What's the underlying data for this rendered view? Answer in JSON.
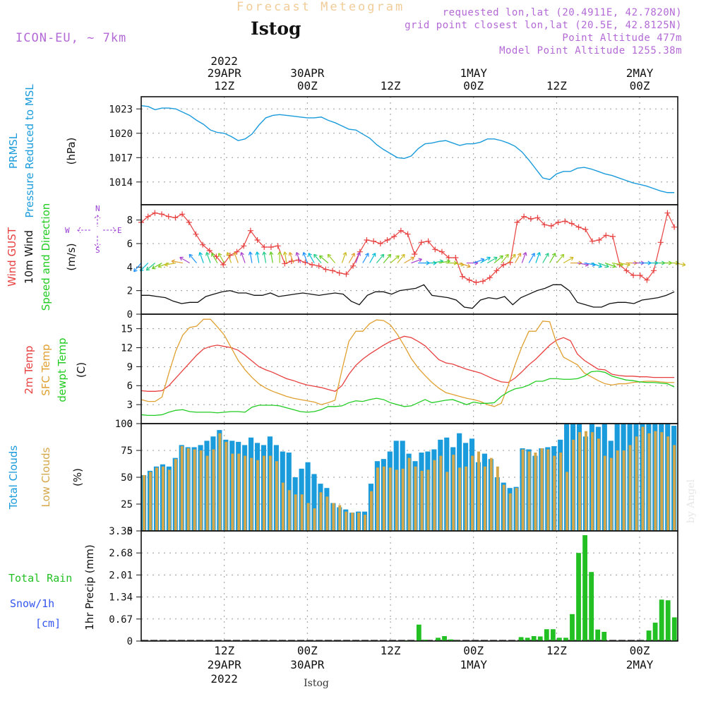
{
  "header": {
    "product_title": "Forecast Meteogram",
    "location": "Istog",
    "model": "ICON-EU, ~ 7km",
    "requested": "requested lon,lat (20.4911E, 42.7820N)",
    "grid_point": "grid point closest lon,lat (20.5E, 42.8125N)",
    "point_altitude": "Point Altitude 477m",
    "model_altitude": "Model Point Altitude 1255.38m",
    "footer_location": "Istog",
    "watermark": "by Angel"
  },
  "colors": {
    "pressure": "#1a9bdc",
    "gust": "#e84040",
    "wind": "#111111",
    "dir_label": "#9b3fd4",
    "temp": "#e84040",
    "sfc": "#e0a030",
    "dew": "#22cc22",
    "total_clouds": "#1a9bdc",
    "low_clouds": "#d4a84a",
    "rain": "#22c022",
    "snow": "#3355ee",
    "header_purple": "#b36ad6",
    "header_orange": "#f0c890"
  },
  "chart_data": [
    {
      "type": "line",
      "title": "PRMSL Pressure Reduced to MSL",
      "label_lines": [
        "PRMSL",
        "Pressure Reduced to MSL"
      ],
      "unit": "(hPa)",
      "x_hours_from": "2022-04-29 00Z",
      "ylim": [
        1011.2,
        1024.5
      ],
      "yticks": [
        1014,
        1017,
        1020,
        1023
      ],
      "x": [
        0,
        1,
        2,
        3,
        4,
        5,
        6,
        7,
        8,
        9,
        10,
        11,
        12,
        13,
        14,
        15,
        16,
        17,
        18,
        19,
        20,
        21,
        22,
        23,
        24,
        25,
        26,
        27,
        28,
        29,
        30,
        31,
        32,
        33,
        34,
        35,
        36,
        37,
        38,
        39,
        40,
        41,
        42,
        43,
        44,
        45,
        46,
        47,
        48,
        49,
        50,
        51,
        52,
        53,
        54,
        55,
        56,
        57,
        58,
        59,
        60,
        61,
        62,
        63,
        64,
        65,
        66,
        67,
        68,
        69,
        70,
        71,
        72,
        73,
        74,
        75,
        76,
        77
      ],
      "values": [
        1023.4,
        1023.3,
        1022.9,
        1023.1,
        1023.1,
        1023.0,
        1022.6,
        1022.2,
        1021.6,
        1021.1,
        1020.4,
        1020.1,
        1020.0,
        1019.6,
        1019.1,
        1019.3,
        1019.9,
        1021.0,
        1021.9,
        1022.2,
        1022.3,
        1022.2,
        1022.1,
        1022.0,
        1021.9,
        1021.9,
        1022.0,
        1021.6,
        1021.3,
        1020.9,
        1020.5,
        1020.4,
        1019.9,
        1019.4,
        1018.6,
        1018.0,
        1017.5,
        1017.0,
        1016.9,
        1017.2,
        1018.1,
        1018.7,
        1018.8,
        1019.0,
        1019.1,
        1018.8,
        1018.5,
        1018.7,
        1018.7,
        1018.9,
        1019.3,
        1019.3,
        1019.1,
        1018.8,
        1018.4,
        1017.7,
        1016.7,
        1015.6,
        1014.5,
        1014.3,
        1015.0,
        1015.3,
        1015.3,
        1015.7,
        1015.8,
        1015.6,
        1015.3,
        1015.0,
        1014.8,
        1014.5,
        1014.2,
        1013.9,
        1013.7,
        1013.5,
        1013.2,
        1012.9,
        1012.7,
        1012.7
      ]
    },
    {
      "type": "line",
      "title": "Wind GUST / 10m Wind Speed and Direction",
      "label_lines": [
        "Wind GUST",
        "10m Wind",
        "Speed and Direction"
      ],
      "unit": "(m/s)",
      "compass": {
        "n": "N",
        "s": "S",
        "e": "E",
        "w": "W"
      },
      "ylim": [
        0,
        9.3
      ],
      "yticks": [
        0,
        2,
        4,
        6,
        8
      ],
      "series": [
        {
          "name": "Wind GUST",
          "values": [
            7.8,
            8.3,
            8.6,
            8.5,
            8.3,
            8.2,
            8.5,
            7.8,
            6.8,
            5.9,
            5.4,
            4.9,
            4.2,
            5.0,
            5.3,
            5.8,
            7.1,
            6.3,
            5.7,
            5.7,
            5.8,
            4.3,
            4.5,
            4.6,
            4.4,
            4.2,
            4.1,
            3.8,
            3.7,
            3.5,
            3.4,
            4.1,
            5.3,
            6.3,
            6.2,
            6.0,
            6.3,
            6.6,
            7.1,
            6.8,
            5.1,
            6.1,
            6.2,
            5.5,
            5.3,
            4.8,
            4.8,
            3.2,
            2.9,
            2.7,
            2.8,
            3.1,
            3.7,
            4.2,
            4.4,
            7.8,
            8.3,
            8.1,
            8.2,
            7.6,
            7.5,
            7.8,
            7.9,
            7.7,
            7.4,
            7.2,
            6.2,
            6.3,
            6.7,
            6.6,
            4.2,
            3.7,
            3.3,
            3.3,
            2.9,
            3.7,
            6.1,
            8.6,
            7.4
          ]
        },
        {
          "name": "10m Wind",
          "values": [
            1.6,
            1.6,
            1.5,
            1.4,
            1.1,
            0.9,
            1.0,
            1.0,
            1.5,
            1.7,
            1.9,
            2.0,
            1.8,
            1.8,
            1.6,
            1.6,
            1.8,
            1.5,
            1.6,
            1.7,
            1.8,
            1.7,
            1.6,
            1.7,
            1.8,
            1.7,
            1.1,
            0.8,
            1.6,
            1.9,
            1.9,
            1.7,
            2.0,
            2.1,
            2.2,
            2.5,
            1.6,
            1.5,
            1.4,
            1.2,
            0.6,
            0.5,
            1.2,
            1.4,
            1.3,
            1.5,
            0.8,
            1.4,
            1.7,
            2.0,
            2.2,
            2.5,
            2.5,
            2.0,
            1.0,
            0.8,
            0.6,
            0.6,
            0.9,
            1.0,
            1.0,
            0.9,
            1.2,
            1.3,
            1.4,
            1.6,
            1.9
          ]
        },
        {
          "name": "Wind Direction (deg)",
          "values": [
            40,
            45,
            50,
            60,
            70,
            80,
            100,
            120,
            140,
            160,
            160,
            150,
            150,
            160,
            160,
            160,
            170,
            170,
            170,
            170,
            180,
            170,
            160,
            160,
            160,
            150,
            140,
            130,
            140,
            200,
            210,
            200,
            210,
            210,
            220,
            220,
            230,
            220,
            240,
            250,
            270,
            270,
            260,
            260,
            270,
            280,
            290,
            270,
            250,
            240,
            240,
            230,
            220,
            220,
            210,
            200,
            210,
            200,
            210,
            210,
            220,
            240,
            270,
            280,
            280,
            290,
            290,
            290,
            280,
            280,
            270,
            270,
            270,
            270,
            270,
            270,
            270,
            280
          ]
        }
      ]
    },
    {
      "type": "line",
      "title": "2m Temp / SFC Temp / dewpt Temp",
      "label_lines": [
        "2m Temp",
        "SFC Temp",
        "dewpt Temp"
      ],
      "unit": "(C)",
      "ylim": [
        0,
        17.3
      ],
      "yticks": [
        0,
        3,
        6,
        9,
        12,
        15
      ],
      "series": [
        {
          "name": "2m Temp",
          "values": [
            5.2,
            5.1,
            5.1,
            5.2,
            6.0,
            7.2,
            8.4,
            9.6,
            10.8,
            11.8,
            12.2,
            12.4,
            12.2,
            12.0,
            11.6,
            10.8,
            9.9,
            9.0,
            8.5,
            8.1,
            7.6,
            7.1,
            6.8,
            6.4,
            6.1,
            5.9,
            5.7,
            5.4,
            5.1,
            6.0,
            7.8,
            9.2,
            10.2,
            11.0,
            11.7,
            12.4,
            13.0,
            13.4,
            13.8,
            13.6,
            13.0,
            12.3,
            11.2,
            10.1,
            9.6,
            9.4,
            9.0,
            8.6,
            8.3,
            8.0,
            7.5,
            7.0,
            6.6,
            6.5,
            7.2,
            8.2,
            9.3,
            10.2,
            11.3,
            12.4,
            13.2,
            13.6,
            13.1,
            11.0,
            10.0,
            9.3,
            8.6,
            8.5,
            7.8,
            7.6,
            7.5,
            7.5,
            7.4,
            7.4,
            7.3,
            7.3,
            7.3,
            7.3
          ]
        },
        {
          "name": "SFC Temp",
          "values": [
            3.8,
            3.5,
            3.5,
            4.2,
            8.0,
            11.5,
            14.0,
            15.2,
            15.4,
            16.5,
            16.5,
            15.3,
            14.0,
            12.0,
            10.0,
            8.5,
            7.3,
            6.3,
            5.6,
            5.1,
            4.7,
            4.3,
            4.0,
            3.8,
            3.6,
            3.4,
            3.0,
            3.3,
            3.7,
            8.5,
            13.0,
            14.6,
            14.6,
            15.8,
            16.4,
            16.3,
            15.6,
            14.1,
            12.3,
            10.3,
            8.8,
            7.6,
            6.5,
            5.6,
            4.9,
            4.6,
            4.3,
            4.0,
            3.8,
            3.5,
            3.0,
            2.7,
            3.2,
            6.0,
            9.3,
            12.2,
            14.6,
            14.6,
            16.2,
            16.1,
            12.7,
            10.5,
            9.9,
            9.3,
            8.0,
            7.4,
            6.8,
            6.3,
            6.1,
            6.3,
            6.3,
            6.5,
            6.6,
            6.7,
            6.7,
            6.6,
            6.5,
            6.5
          ]
        },
        {
          "name": "dewpt Temp",
          "values": [
            1.4,
            1.3,
            1.3,
            1.4,
            1.8,
            2.1,
            2.2,
            1.9,
            1.8,
            1.8,
            1.8,
            1.7,
            1.8,
            1.9,
            1.9,
            1.8,
            2.6,
            2.9,
            2.9,
            2.9,
            2.8,
            2.5,
            2.2,
            1.9,
            1.8,
            1.9,
            2.2,
            2.7,
            2.7,
            2.8,
            3.3,
            3.6,
            3.5,
            3.8,
            4.0,
            3.8,
            3.3,
            3.0,
            2.7,
            2.8,
            3.3,
            3.8,
            3.3,
            3.5,
            3.7,
            3.8,
            3.4,
            3.0,
            3.4,
            3.2,
            3.2,
            3.3,
            4.3,
            5.0,
            5.5,
            5.7,
            6.1,
            6.7,
            6.7,
            7.1,
            7.1,
            7.0,
            7.0,
            7.1,
            7.5,
            8.2,
            8.3,
            8.1,
            7.5,
            7.2,
            6.9,
            6.8,
            6.6,
            6.5,
            6.5,
            6.4,
            6.3,
            5.8
          ]
        }
      ]
    },
    {
      "type": "bar",
      "title": "Total Clouds / Low Clouds",
      "label_lines": [
        "Total Clouds",
        "Low Clouds"
      ],
      "unit": "(%)",
      "ylim": [
        0,
        100
      ],
      "yticks": [
        0,
        25,
        50,
        75,
        100
      ],
      "series": [
        {
          "name": "Total Clouds",
          "values": [
            52,
            56,
            60,
            62,
            60,
            68,
            80,
            78,
            78,
            80,
            84,
            88,
            94,
            85,
            84,
            83,
            80,
            87,
            82,
            80,
            88,
            80,
            74,
            73,
            50,
            58,
            64,
            53,
            44,
            40,
            26,
            22,
            20,
            17,
            18,
            18,
            44,
            65,
            67,
            74,
            84,
            84,
            72,
            65,
            73,
            74,
            76,
            85,
            87,
            78,
            91,
            82,
            86,
            64,
            72,
            67,
            50,
            45,
            40,
            41,
            77,
            76,
            70,
            77,
            78,
            79,
            85,
            100,
            100,
            100,
            88,
            100,
            97,
            100,
            84,
            100,
            100,
            100,
            100,
            100,
            100,
            100,
            100,
            100,
            98
          ]
        },
        {
          "name": "Low Clouds",
          "values": [
            52,
            55,
            59,
            60,
            57,
            67,
            79,
            77,
            76,
            75,
            70,
            76,
            91,
            83,
            72,
            72,
            70,
            68,
            66,
            70,
            70,
            65,
            45,
            38,
            34,
            34,
            26,
            21,
            36,
            32,
            26,
            24,
            18,
            17,
            17,
            15,
            37,
            59,
            60,
            59,
            57,
            58,
            68,
            60,
            56,
            57,
            66,
            70,
            55,
            71,
            59,
            60,
            70,
            74,
            60,
            68,
            60,
            43,
            35,
            40,
            76,
            74,
            73,
            77,
            76,
            70,
            73,
            55,
            85,
            92,
            93,
            92,
            86,
            70,
            68,
            75,
            75,
            80,
            88,
            97,
            91,
            93,
            92,
            88,
            80
          ]
        }
      ]
    },
    {
      "type": "bar",
      "title": "Total Rain / Snow/1h [cm]",
      "label_lines": [
        "Total  Rain",
        "Snow/1h",
        "[cm]"
      ],
      "unit": "1hr Precip (mm)",
      "ylim": [
        0,
        3.35
      ],
      "yticks": [
        "0",
        "0.67",
        "1.34",
        "2.01",
        "2.68",
        "3.35"
      ],
      "ytick_values": [
        0,
        0.67,
        1.34,
        2.01,
        2.68,
        3.35
      ],
      "series": [
        {
          "name": "Total Rain",
          "values": [
            0,
            0,
            0,
            0,
            0,
            0,
            0,
            0,
            0,
            0,
            0,
            0,
            0,
            0,
            0,
            0,
            0,
            0,
            0,
            0,
            0,
            0,
            0,
            0,
            0,
            0,
            0,
            0,
            0,
            0,
            0,
            0,
            0,
            0,
            0,
            0,
            0,
            0,
            0,
            0,
            0,
            0.02,
            0.01,
            0.5,
            0.04,
            0,
            0.1,
            0.15,
            0.05,
            0.02,
            0,
            0,
            0,
            0,
            0,
            0,
            0,
            0,
            0,
            0.12,
            0.1,
            0.15,
            0.14,
            0.36,
            0.36,
            0.1,
            0.1,
            0.82,
            2.68,
            3.22,
            2.1,
            0.35,
            0.28,
            0,
            0,
            0,
            0,
            0,
            0.02,
            0.32,
            0.56,
            1.26,
            1.24,
            0.72
          ]
        },
        {
          "name": "Snow/1h",
          "values": []
        }
      ]
    }
  ],
  "xaxis": {
    "top_ticks": [
      {
        "line1": "2022",
        "line2": "29APR",
        "line3": "12Z"
      },
      {
        "line1": "",
        "line2": "30APR",
        "line3": "00Z"
      },
      {
        "line1": "",
        "line2": "",
        "line3": "12Z"
      },
      {
        "line1": "",
        "line2": "1MAY",
        "line3": "00Z"
      },
      {
        "line1": "",
        "line2": "",
        "line3": "12Z"
      },
      {
        "line1": "",
        "line2": "2MAY",
        "line3": "00Z"
      }
    ],
    "bottom_ticks": [
      {
        "line1": "12Z",
        "line2": "29APR",
        "line3": "2022"
      },
      {
        "line1": "00Z",
        "line2": "30APR",
        "line3": ""
      },
      {
        "line1": "12Z",
        "line2": "",
        "line3": ""
      },
      {
        "line1": "00Z",
        "line2": "1MAY",
        "line3": ""
      },
      {
        "line1": "12Z",
        "line2": "",
        "line3": ""
      },
      {
        "line1": "00Z",
        "line2": "2MAY",
        "line3": ""
      }
    ]
  }
}
